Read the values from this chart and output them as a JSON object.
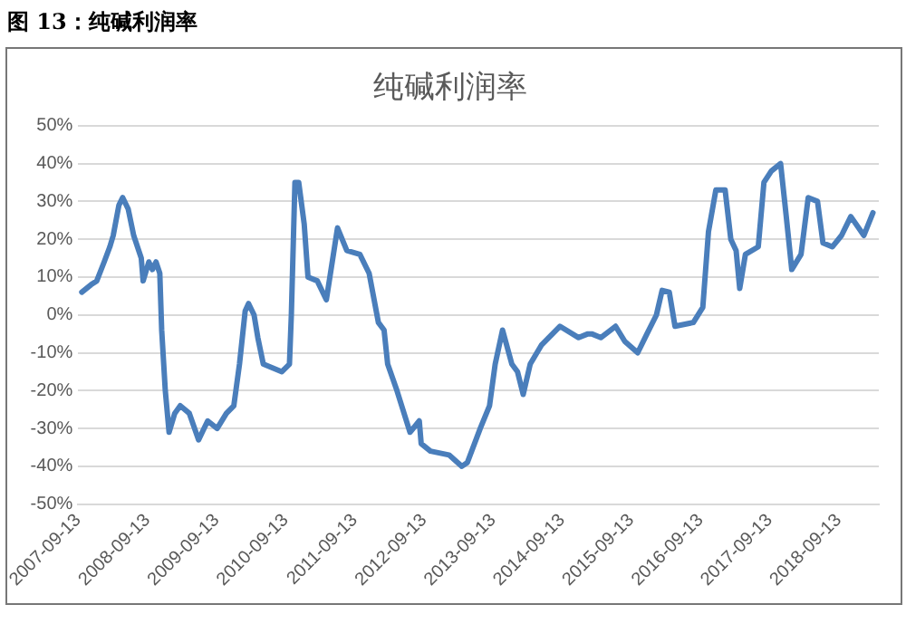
{
  "chart_data": {
    "type": "line",
    "title": "纯碱利润率",
    "annotations": [
      "图 13：纯碱利润率"
    ],
    "x": [
      "2007-10-02",
      "2007-11-20",
      "2007-12-20",
      "2008-01-28",
      "2008-02-27",
      "2008-03-16",
      "2008-04-15",
      "2008-05-05",
      "2008-06-03",
      "2008-07-02",
      "2008-08-11",
      "2008-08-21",
      "2008-09-20",
      "2008-10-09",
      "2008-10-28",
      "2008-11-17",
      "2008-11-27",
      "2008-12-16",
      "2009-01-05",
      "2009-02-04",
      "2009-03-05",
      "2009-04-22",
      "2009-06-10",
      "2009-07-28",
      "2009-09-16",
      "2009-11-04",
      "2009-12-13",
      "2010-01-12",
      "2010-02-11",
      "2010-03-01",
      "2010-03-30",
      "2010-04-19",
      "2010-05-18",
      "2010-07-06",
      "2010-08-24",
      "2010-10-03",
      "2010-10-13",
      "2010-11-01",
      "2010-11-21",
      "2010-12-20",
      "2011-01-09",
      "2011-02-27",
      "2011-04-16",
      "2011-06-14",
      "2011-08-02",
      "2011-10-10",
      "2011-11-28",
      "2012-01-16",
      "2012-02-15",
      "2012-03-05",
      "2012-04-23",
      "2012-07-01",
      "2012-08-19",
      "2012-08-29",
      "2012-10-17",
      "2013-01-23",
      "2013-04-01",
      "2013-04-30",
      "2013-07-07",
      "2013-08-25",
      "2013-09-24",
      "2013-11-02",
      "2013-12-21",
      "2014-01-20",
      "2014-02-19",
      "2014-03-28",
      "2014-05-26",
      "2014-09-01",
      "2014-12-09",
      "2015-01-27",
      "2015-02-16",
      "2015-04-05",
      "2015-06-22",
      "2015-08-10",
      "2015-10-17",
      "2015-12-05",
      "2016-01-24",
      "2016-02-23",
      "2016-04-01",
      "2016-05-01",
      "2016-08-06",
      "2016-09-25",
      "2016-10-25",
      "2016-12-03",
      "2017-01-21",
      "2017-02-20",
      "2017-03-20",
      "2017-04-08",
      "2017-05-08",
      "2017-07-15",
      "2017-08-14",
      "2017-09-22",
      "2017-11-10",
      "2017-12-10",
      "2018-01-08",
      "2018-02-26",
      "2018-04-05",
      "2018-05-24",
      "2018-06-22",
      "2018-08-10",
      "2018-09-28",
      "2018-11-16",
      "2019-01-24",
      "2019-03-13"
    ],
    "series": [
      {
        "color": "#4a7ebb",
        "values": [
          6,
          8,
          9,
          14,
          18,
          21,
          29,
          31,
          28,
          21,
          15,
          9,
          14,
          12,
          14,
          11,
          -4,
          -20,
          -31,
          -26,
          -24,
          -26,
          -33,
          -28,
          -30,
          -26,
          -24,
          -13,
          1,
          3,
          0,
          -6,
          -13,
          -14,
          -15,
          -13,
          0,
          35,
          35,
          24,
          10,
          9,
          4,
          23,
          17,
          16,
          11,
          -2,
          -4,
          -13,
          -20,
          -31,
          -28,
          -34,
          -36,
          -37,
          -40,
          -39,
          -30,
          -24,
          -13,
          -4,
          -13,
          -15,
          -21,
          -13,
          -8,
          -3,
          -6,
          -5,
          -5,
          -6,
          -3,
          -7,
          -10,
          -5,
          0,
          6.5,
          6,
          -3,
          -2,
          2,
          22,
          33,
          33,
          20,
          17,
          7,
          16,
          18,
          35,
          38,
          40,
          26,
          12,
          16,
          31,
          30,
          19,
          18,
          21,
          26,
          21,
          27
        ]
      }
    ],
    "xlim": [
      "2007-09-13",
      "2019-04-13"
    ],
    "xticks": [
      {
        "value": "2007-09-13",
        "label": "2007-09-13"
      },
      {
        "value": "2008-09-13",
        "label": "2008-09-13"
      },
      {
        "value": "2009-09-13",
        "label": "2009-09-13"
      },
      {
        "value": "2010-09-13",
        "label": "2010-09-13"
      },
      {
        "value": "2011-09-13",
        "label": "2011-09-13"
      },
      {
        "value": "2012-09-13",
        "label": "2012-09-13"
      },
      {
        "value": "2013-09-13",
        "label": "2013-09-13"
      },
      {
        "value": "2014-09-13",
        "label": "2014-09-13"
      },
      {
        "value": "2015-09-13",
        "label": "2015-09-13"
      },
      {
        "value": "2016-09-13",
        "label": "2016-09-13"
      },
      {
        "value": "2017-09-13",
        "label": "2017-09-13"
      },
      {
        "value": "2018-09-13",
        "label": "2018-09-13"
      }
    ],
    "ylim": [
      -50,
      50
    ],
    "yticks": [
      {
        "value": -50,
        "label": "-50%"
      },
      {
        "value": -40,
        "label": "-40%"
      },
      {
        "value": -30,
        "label": "-30%"
      },
      {
        "value": -20,
        "label": "-20%"
      },
      {
        "value": -10,
        "label": "-10%"
      },
      {
        "value": 0,
        "label": "0%"
      },
      {
        "value": 10,
        "label": "10%"
      },
      {
        "value": 20,
        "label": "20%"
      },
      {
        "value": 30,
        "label": "30%"
      },
      {
        "value": 40,
        "label": "40%"
      },
      {
        "value": 50,
        "label": "50%"
      }
    ],
    "grid": "y",
    "marker": "none",
    "line_style": "solid"
  }
}
